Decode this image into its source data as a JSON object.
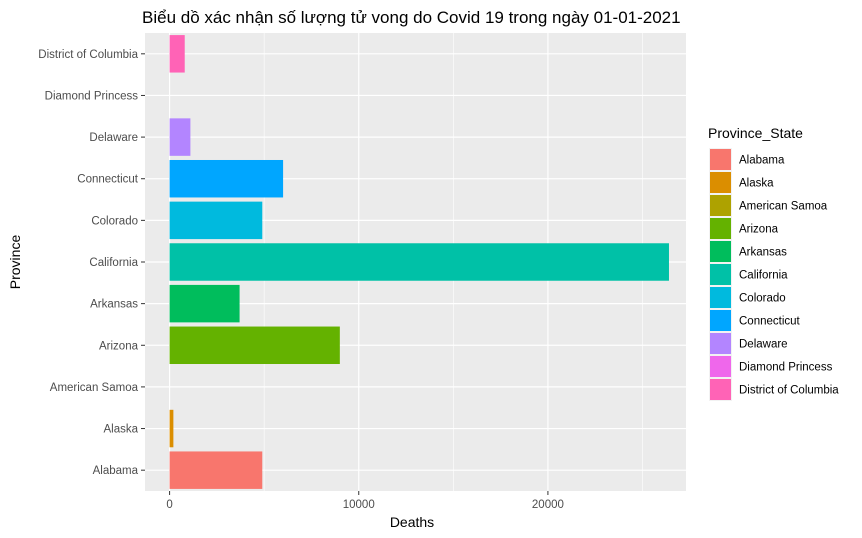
{
  "chart_data": {
    "type": "bar",
    "orientation": "horizontal",
    "title": "Biểu dồ xác nhận số lượng tử vong do Covid 19 trong ngày 01-01-2021",
    "xlabel": "Deaths",
    "ylabel": "Province",
    "xlim": [
      -1300,
      27300
    ],
    "xticks": [
      0,
      10000,
      20000
    ],
    "xtick_labels": [
      "0",
      "10000",
      "20000"
    ],
    "grid": true,
    "background": "#ebebeb",
    "legend": {
      "title": "Province_State",
      "position": "right"
    },
    "categories": [
      "Alabama",
      "Alaska",
      "American Samoa",
      "Arizona",
      "Arkansas",
      "California",
      "Colorado",
      "Connecticut",
      "Delaware",
      "Diamond Princess",
      "District of Columbia"
    ],
    "values": [
      4900,
      200,
      0,
      9000,
      3700,
      26400,
      4900,
      6000,
      1100,
      0,
      800
    ],
    "colors": [
      "#F8766D",
      "#DB8E00",
      "#AEA200",
      "#64B200",
      "#00BD5C",
      "#00C1A7",
      "#00BADE",
      "#00A6FF",
      "#B385FF",
      "#EF67EB",
      "#FF63B6"
    ]
  }
}
